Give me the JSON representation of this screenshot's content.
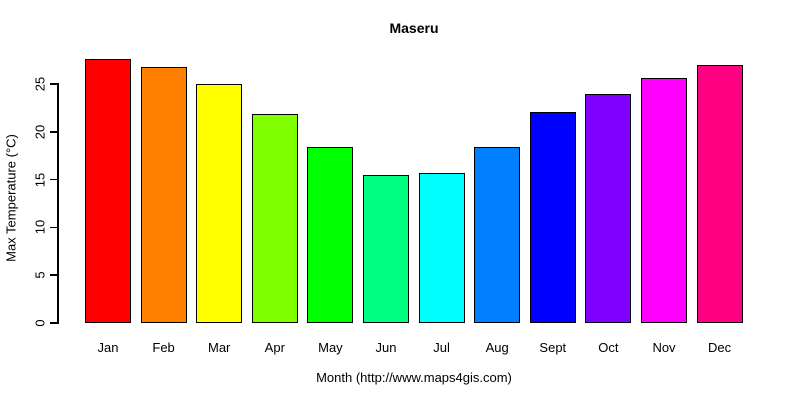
{
  "chart_data": {
    "type": "bar",
    "title": "Maseru",
    "xlabel": "Month (http://www.maps4gis.com)",
    "ylabel": "Max Temperature (°C)",
    "categories": [
      "Jan",
      "Feb",
      "Mar",
      "Apr",
      "May",
      "Jun",
      "Jul",
      "Aug",
      "Sept",
      "Oct",
      "Nov",
      "Dec"
    ],
    "values": [
      27.6,
      26.8,
      25.0,
      21.9,
      18.4,
      15.5,
      15.7,
      18.4,
      22.1,
      24.0,
      25.6,
      27.0
    ],
    "bar_colors": [
      "#FF0000",
      "#FF8000",
      "#FFFF00",
      "#80FF00",
      "#00FF00",
      "#00FF80",
      "#00FFFF",
      "#0080FF",
      "#0000FF",
      "#8000FF",
      "#FF00FF",
      "#FF0080"
    ],
    "bar_border_color": "#000000",
    "yticks": [
      "0",
      "5",
      "10",
      "15",
      "20",
      "25"
    ],
    "ylim": [
      0,
      25
    ],
    "grid": false,
    "legend": false,
    "background_color": "#FFFFFF",
    "text_color": "#000000"
  }
}
